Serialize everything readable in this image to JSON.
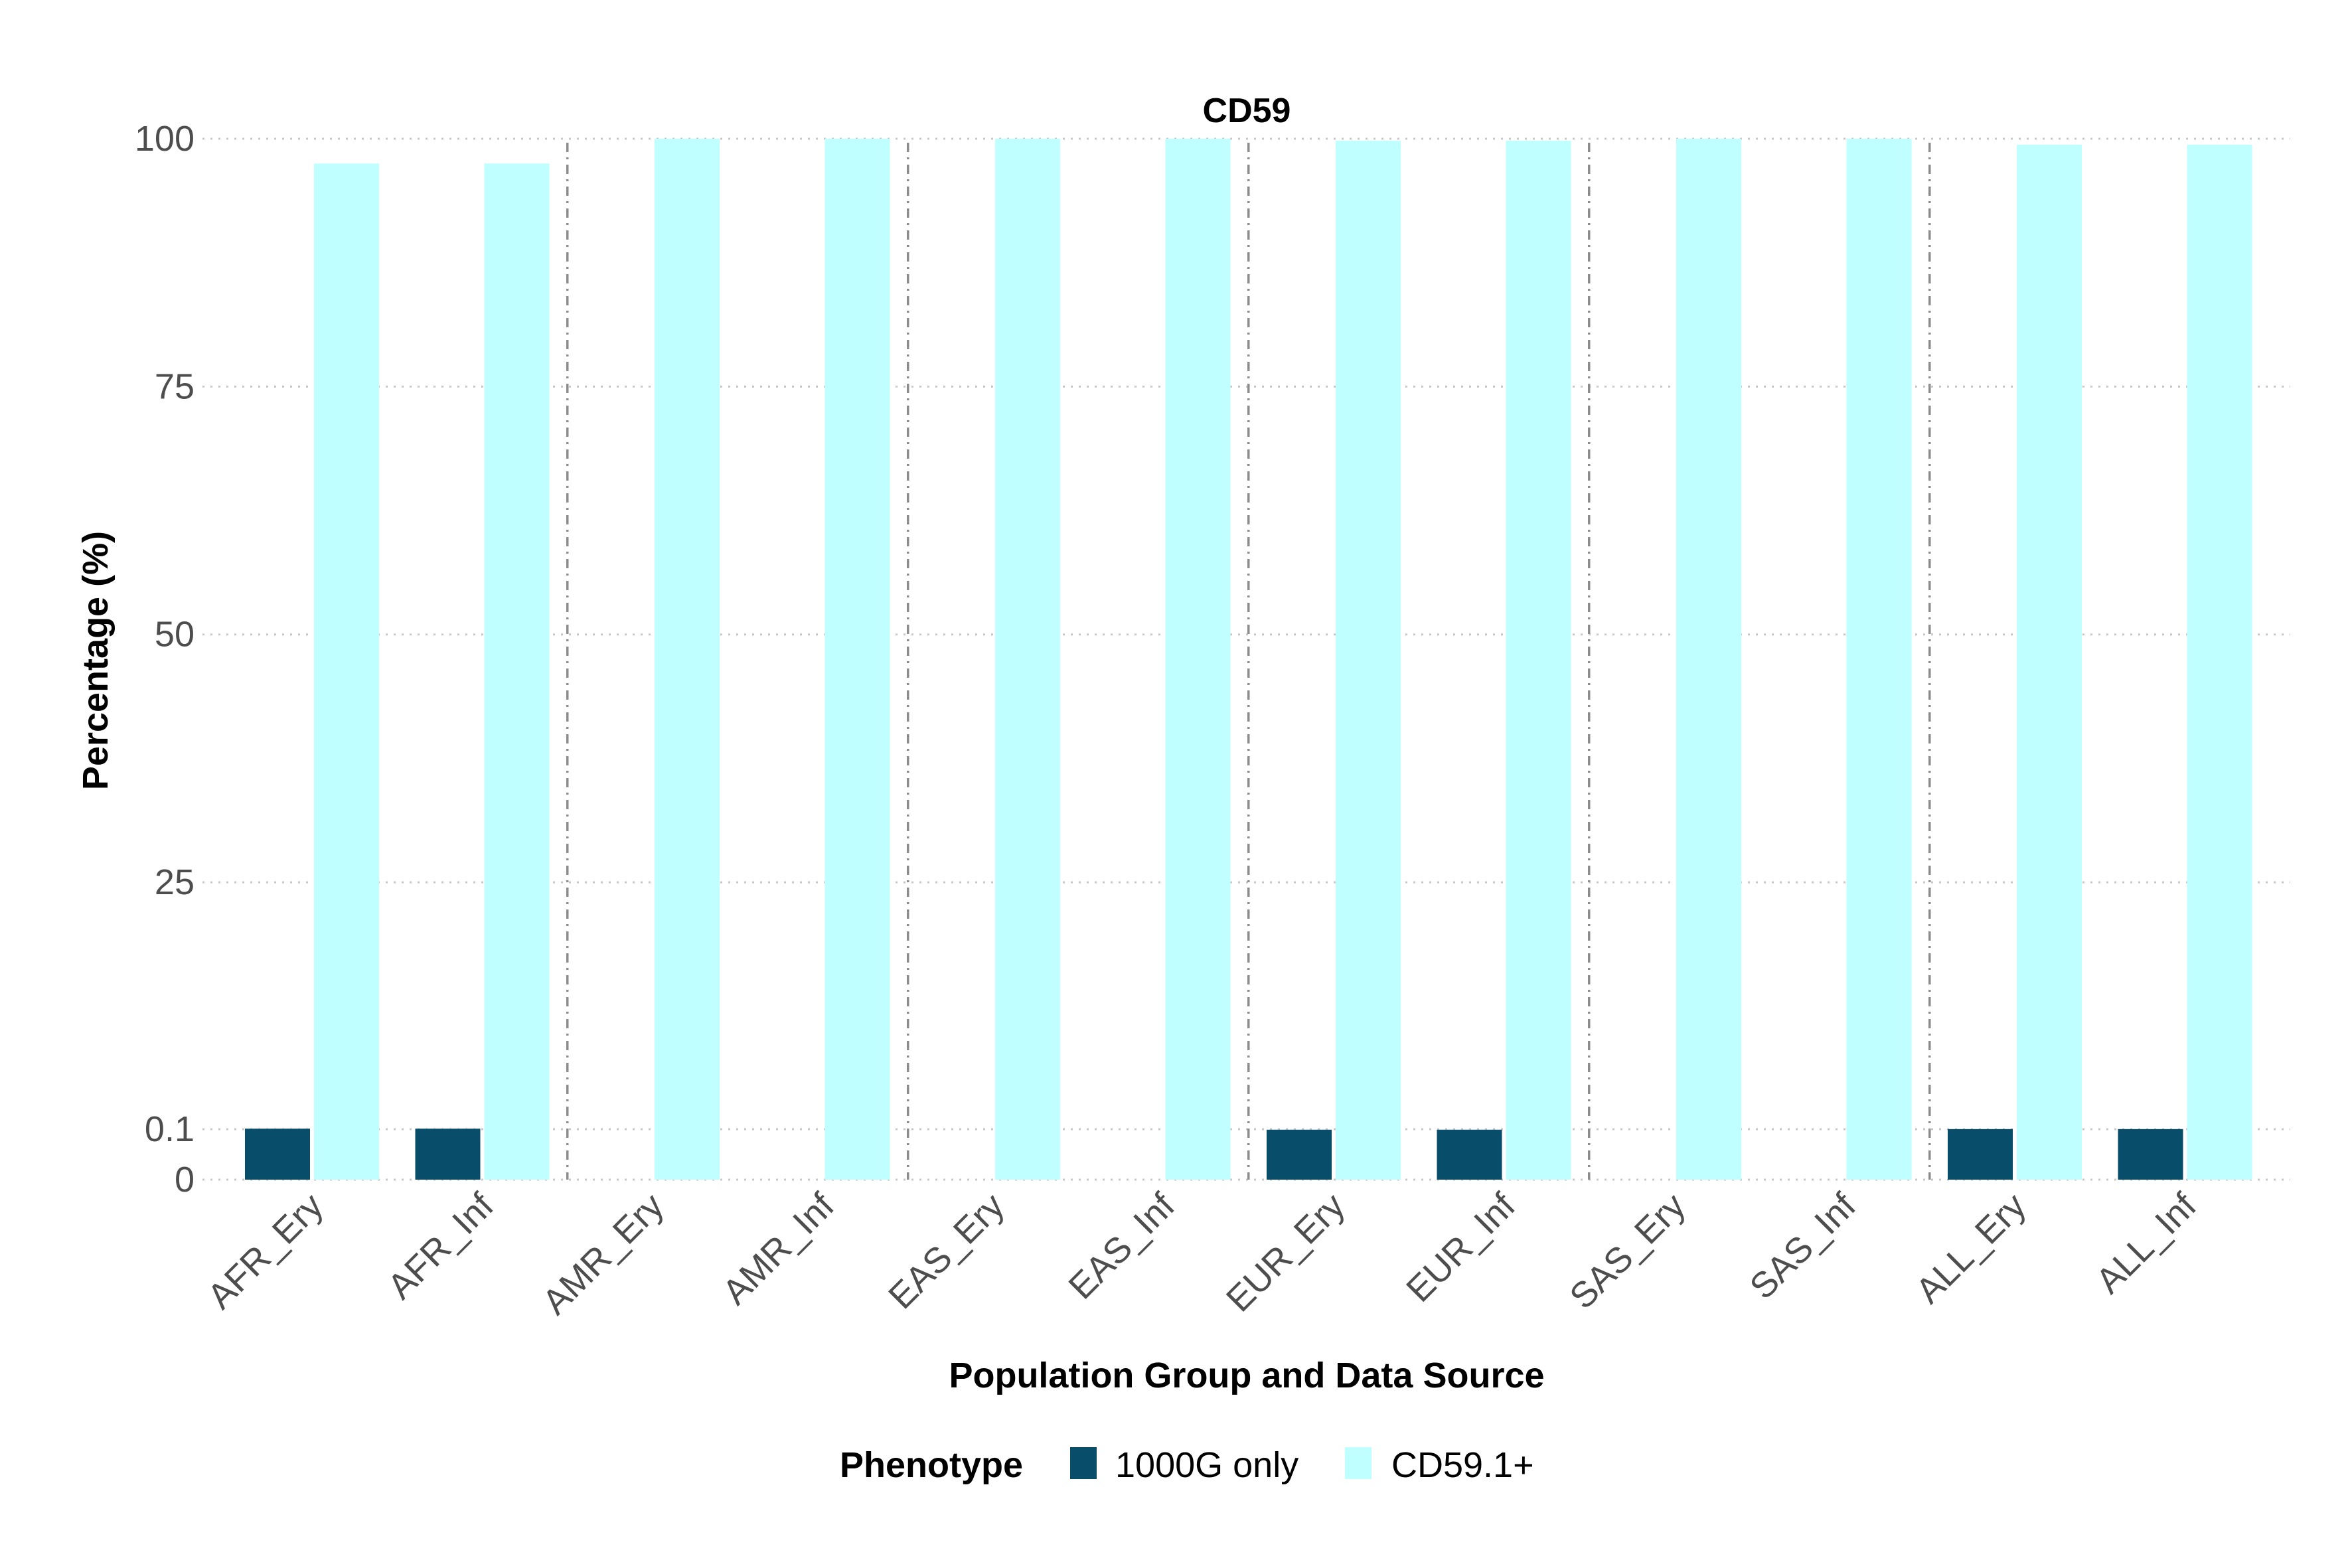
{
  "chart_data": {
    "type": "bar",
    "title": "CD59",
    "xlabel": "Population Group and Data Source",
    "ylabel": "Percentage (%)",
    "yticks": [
      "0",
      "0.1",
      "25",
      "50",
      "75",
      "100"
    ],
    "categories": [
      "AFR_Ery",
      "AFR_Inf",
      "AMR_Ery",
      "AMR_Inf",
      "EAS_Ery",
      "EAS_Inf",
      "EUR_Ery",
      "EUR_Inf",
      "SAS_Ery",
      "SAS_Inf",
      "ALL_Ery",
      "ALL_Inf"
    ],
    "series": [
      {
        "name": "1000G only",
        "color": "#084e6b",
        "values": [
          0.154,
          0.154,
          0,
          0,
          0,
          0,
          0.099,
          0.099,
          0,
          0,
          0.111,
          0.111
        ]
      },
      {
        "name": "CD59.1+",
        "color": "#bfffff",
        "values": [
          97.5,
          97.5,
          100,
          100,
          100,
          100,
          99.8,
          99.8,
          100,
          100,
          99.4,
          99.4
        ]
      }
    ],
    "group_separators_after": [
      2,
      4,
      6,
      8,
      10
    ],
    "grid": "dotted horizontal",
    "legend": {
      "title": "Phenotype",
      "position": "bottom"
    }
  }
}
